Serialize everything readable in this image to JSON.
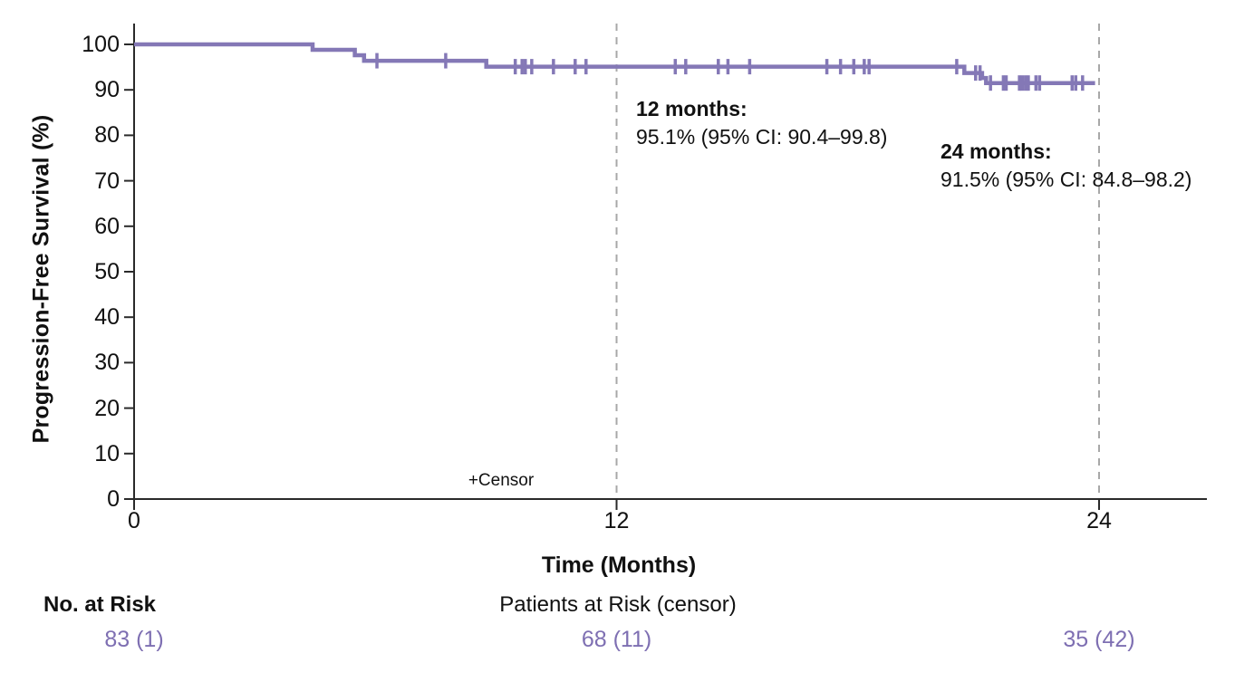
{
  "figure": {
    "y_axis_title": "Progression-Free Survival (%)",
    "x_axis_title": "Time (Months)",
    "censor_legend": "+Censor",
    "risk_header": "No. at Risk",
    "risk_note": "Patients at Risk (censor)"
  },
  "annotations": {
    "m12": {
      "title": "12 months:",
      "value": "95.1% (95% CI: 90.4–99.8)"
    },
    "m24": {
      "title": "24 months:",
      "value": "91.5% (95% CI: 84.8–98.2)"
    }
  },
  "colors": {
    "curve": "#8478b6",
    "risk_values": "#7e6fb2",
    "reference_line": "#a8a8a8",
    "axis": "#2a2a2a",
    "text": "#111111"
  },
  "chart_data": {
    "type": "line",
    "variant": "kaplan_meier_step_curve",
    "title": "",
    "xlabel": "Time (Months)",
    "ylabel": "Progression-Free Survival (%)",
    "xlim": [
      0,
      26.7
    ],
    "ylim": [
      0,
      100
    ],
    "x_ticks": [
      0,
      12,
      24
    ],
    "y_ticks": [
      0,
      10,
      20,
      30,
      40,
      50,
      60,
      70,
      80,
      90,
      100
    ],
    "grid": false,
    "legend_position": "inside-bottom",
    "reference_lines_x": [
      12,
      24
    ],
    "series": [
      {
        "name": "Progression-Free Survival",
        "color": "#8478b6",
        "step_vertices": [
          [
            0,
            100
          ],
          [
            4.44,
            100
          ],
          [
            4.44,
            98.8
          ],
          [
            5.49,
            98.8
          ],
          [
            5.49,
            97.6
          ],
          [
            5.72,
            97.6
          ],
          [
            5.72,
            96.4
          ],
          [
            8.76,
            96.4
          ],
          [
            8.76,
            95.1
          ],
          [
            20.65,
            95.1
          ],
          [
            20.65,
            93.7
          ],
          [
            21.09,
            93.7
          ],
          [
            21.09,
            92.6
          ],
          [
            21.19,
            92.6
          ],
          [
            21.19,
            91.5
          ],
          [
            23.9,
            91.5
          ]
        ],
        "censor_marks": [
          [
            6.04,
            96.4
          ],
          [
            7.75,
            96.4
          ],
          [
            9.48,
            95.1
          ],
          [
            9.65,
            95.1
          ],
          [
            9.73,
            95.1
          ],
          [
            9.89,
            95.1
          ],
          [
            10.43,
            95.1
          ],
          [
            10.97,
            95.1
          ],
          [
            11.24,
            95.1
          ],
          [
            13.46,
            95.1
          ],
          [
            13.72,
            95.1
          ],
          [
            14.53,
            95.1
          ],
          [
            14.77,
            95.1
          ],
          [
            15.31,
            95.1
          ],
          [
            17.23,
            95.1
          ],
          [
            17.57,
            95.1
          ],
          [
            17.9,
            95.1
          ],
          [
            18.16,
            95.1
          ],
          [
            18.28,
            95.1
          ],
          [
            20.46,
            95.1
          ],
          [
            20.93,
            93.7
          ],
          [
            21.04,
            93.7
          ],
          [
            21.3,
            91.5
          ],
          [
            21.62,
            91.5
          ],
          [
            21.69,
            91.5
          ],
          [
            22.02,
            91.5
          ],
          [
            22.09,
            91.5
          ],
          [
            22.17,
            91.5
          ],
          [
            22.24,
            91.5
          ],
          [
            22.43,
            91.5
          ],
          [
            22.52,
            91.5
          ],
          [
            23.33,
            91.5
          ],
          [
            23.42,
            91.5
          ],
          [
            23.59,
            91.5
          ]
        ]
      }
    ],
    "landmark_estimates": [
      {
        "time_months": 12,
        "estimate_pct": 95.1,
        "ci95_low": 90.4,
        "ci95_high": 99.8
      },
      {
        "time_months": 24,
        "estimate_pct": 91.5,
        "ci95_low": 84.8,
        "ci95_high": 98.2
      }
    ],
    "risk_table": {
      "times": [
        0,
        12,
        24
      ],
      "values": [
        "83 (1)",
        "68 (11)",
        "35 (42)"
      ]
    }
  }
}
